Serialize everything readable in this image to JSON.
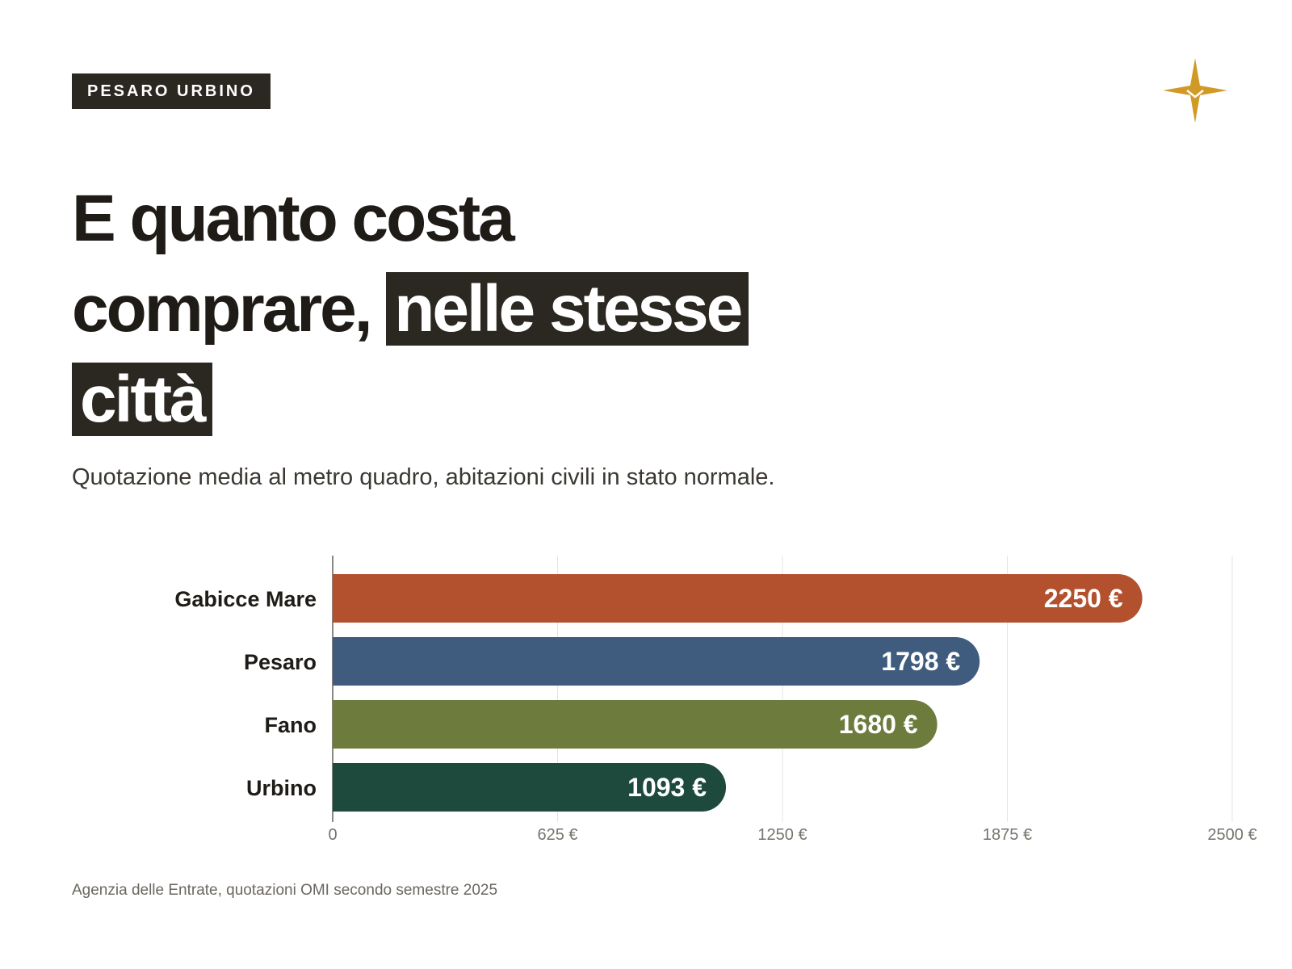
{
  "tag": "PESARO URBINO",
  "title": {
    "part1": "E quanto costa comprare, ",
    "highlight": "nelle stesse città"
  },
  "subtitle": "Quotazione media al metro quadro, abitazioni civili in stato normale.",
  "source": "Agenzia delle Entrate, quotazioni OMI secondo semestre 2025",
  "colors": {
    "ink": "#2b2721",
    "accent_star": "#d19a27"
  },
  "chart_data": {
    "type": "bar",
    "orientation": "horizontal",
    "categories": [
      "Gabicce Mare",
      "Pesaro",
      "Fano",
      "Urbino"
    ],
    "values": [
      2250,
      1798,
      1680,
      1093
    ],
    "value_labels": [
      "2250 €",
      "1798 €",
      "1680 €",
      "1093 €"
    ],
    "colors": [
      "#b3502e",
      "#3f5c7e",
      "#6d7b3d",
      "#1e4a3e"
    ],
    "xlim": [
      0,
      2500
    ],
    "ticks": [
      0,
      625,
      1250,
      1875,
      2500
    ],
    "tick_labels": [
      "0",
      "625 €",
      "1250 €",
      "1875 €",
      "2500 €"
    ],
    "grid": true,
    "legend": "none"
  }
}
